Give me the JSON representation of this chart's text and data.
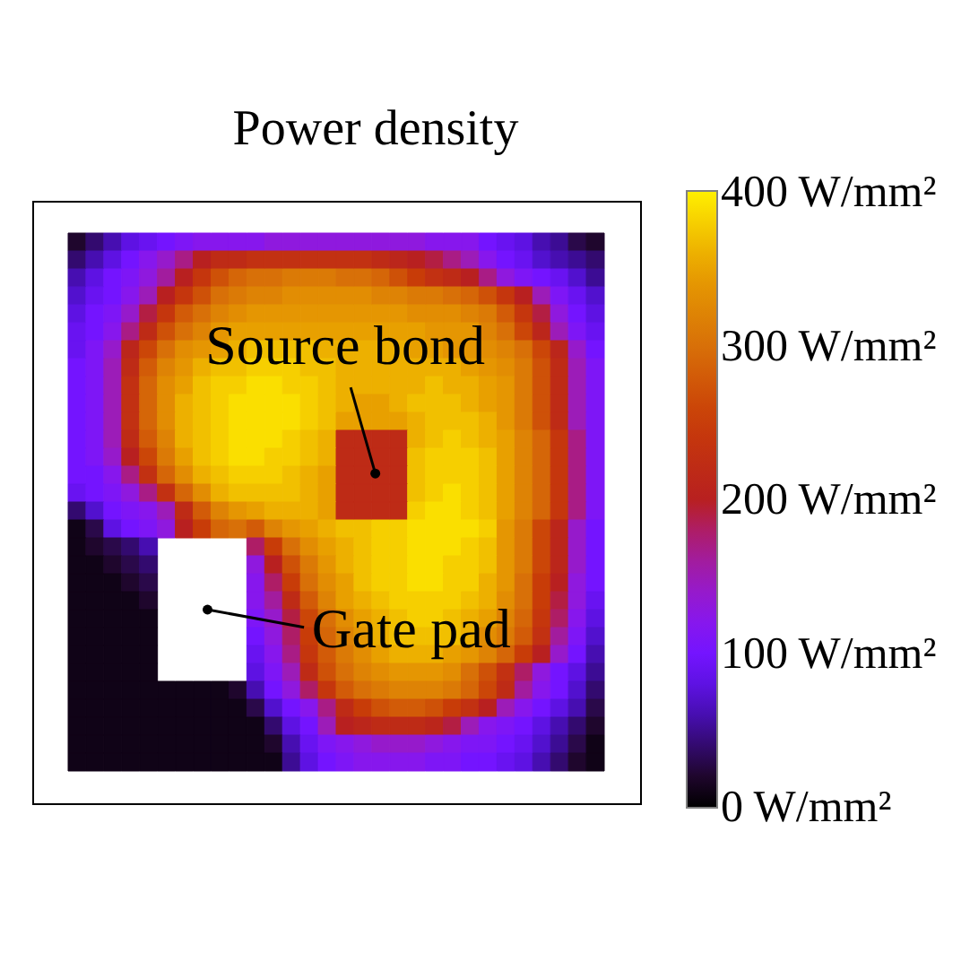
{
  "chart_data": {
    "type": "heatmap",
    "title": "Power density",
    "annotations": [
      "Source bond",
      "Gate pad"
    ],
    "categories": [
      null,
      null,
      null,
      null,
      null,
      null,
      null,
      null,
      null,
      null,
      null,
      null,
      null,
      null,
      null,
      null,
      null,
      null,
      null,
      null,
      null,
      null,
      null,
      null,
      null,
      null,
      null,
      null,
      null,
      null
    ],
    "y_categories": [
      null,
      null,
      null,
      null,
      null,
      null,
      null,
      null,
      null,
      null,
      null,
      null,
      null,
      null,
      null,
      null,
      null,
      null,
      null,
      null,
      null,
      null,
      null,
      null,
      null,
      null,
      null,
      null,
      null,
      null
    ],
    "cells": [
      [
        20,
        40,
        60,
        80,
        90,
        100,
        110,
        120,
        120,
        120,
        120,
        130,
        130,
        130,
        130,
        130,
        130,
        130,
        130,
        130,
        120,
        120,
        120,
        100,
        90,
        80,
        60,
        50,
        30,
        20
      ],
      [
        40,
        60,
        80,
        100,
        120,
        140,
        170,
        200,
        220,
        220,
        230,
        230,
        230,
        230,
        230,
        230,
        230,
        220,
        210,
        200,
        190,
        170,
        150,
        120,
        100,
        90,
        70,
        60,
        50,
        40
      ],
      [
        60,
        80,
        100,
        110,
        130,
        160,
        200,
        240,
        270,
        290,
        300,
        300,
        310,
        310,
        310,
        300,
        300,
        290,
        270,
        250,
        230,
        220,
        200,
        170,
        130,
        110,
        100,
        90,
        70,
        50
      ],
      [
        70,
        90,
        100,
        120,
        150,
        200,
        240,
        270,
        300,
        310,
        320,
        320,
        330,
        330,
        330,
        330,
        330,
        320,
        320,
        310,
        310,
        300,
        290,
        270,
        240,
        200,
        150,
        110,
        90,
        70
      ],
      [
        80,
        100,
        110,
        140,
        190,
        240,
        280,
        300,
        320,
        330,
        340,
        340,
        340,
        340,
        340,
        340,
        340,
        340,
        340,
        330,
        330,
        330,
        320,
        310,
        280,
        240,
        190,
        130,
        100,
        80
      ],
      [
        90,
        100,
        120,
        170,
        220,
        270,
        300,
        320,
        340,
        350,
        350,
        350,
        350,
        350,
        350,
        350,
        350,
        350,
        350,
        350,
        340,
        340,
        340,
        320,
        300,
        260,
        210,
        150,
        110,
        90
      ],
      [
        90,
        110,
        140,
        210,
        260,
        300,
        330,
        340,
        350,
        360,
        370,
        370,
        370,
        370,
        360,
        360,
        360,
        360,
        360,
        350,
        350,
        340,
        340,
        330,
        320,
        300,
        260,
        210,
        140,
        100
      ],
      [
        100,
        110,
        150,
        220,
        280,
        320,
        340,
        360,
        370,
        370,
        380,
        380,
        380,
        370,
        370,
        360,
        360,
        360,
        360,
        360,
        360,
        360,
        350,
        340,
        330,
        310,
        270,
        220,
        150,
        110
      ],
      [
        100,
        110,
        150,
        230,
        290,
        330,
        350,
        370,
        380,
        380,
        390,
        390,
        380,
        380,
        370,
        360,
        360,
        360,
        360,
        360,
        370,
        360,
        360,
        350,
        340,
        310,
        270,
        220,
        150,
        110
      ],
      [
        100,
        110,
        150,
        230,
        290,
        330,
        360,
        370,
        380,
        390,
        390,
        390,
        390,
        380,
        370,
        360,
        350,
        350,
        360,
        370,
        370,
        370,
        360,
        350,
        340,
        310,
        270,
        220,
        150,
        110
      ],
      [
        100,
        110,
        150,
        230,
        290,
        330,
        360,
        370,
        380,
        390,
        390,
        390,
        390,
        380,
        370,
        350,
        350,
        350,
        350,
        360,
        370,
        370,
        370,
        360,
        340,
        310,
        270,
        220,
        150,
        110
      ],
      [
        100,
        110,
        150,
        220,
        280,
        320,
        360,
        370,
        380,
        390,
        390,
        390,
        380,
        370,
        360,
        220,
        220,
        220,
        220,
        360,
        370,
        380,
        370,
        360,
        350,
        320,
        290,
        240,
        170,
        110
      ],
      [
        100,
        110,
        140,
        200,
        260,
        310,
        350,
        370,
        380,
        390,
        390,
        380,
        380,
        370,
        360,
        220,
        220,
        220,
        220,
        370,
        380,
        380,
        380,
        370,
        350,
        320,
        290,
        240,
        170,
        110
      ],
      [
        100,
        100,
        120,
        170,
        230,
        290,
        330,
        360,
        370,
        380,
        380,
        380,
        370,
        360,
        350,
        220,
        220,
        220,
        220,
        370,
        380,
        380,
        380,
        370,
        350,
        320,
        290,
        240,
        170,
        110
      ],
      [
        90,
        100,
        110,
        130,
        170,
        230,
        290,
        330,
        360,
        370,
        370,
        370,
        370,
        360,
        350,
        220,
        220,
        220,
        220,
        370,
        380,
        390,
        380,
        370,
        350,
        320,
        290,
        240,
        170,
        110
      ],
      [
        40,
        70,
        100,
        110,
        120,
        150,
        220,
        280,
        320,
        340,
        350,
        360,
        360,
        360,
        350,
        220,
        220,
        220,
        220,
        380,
        390,
        390,
        380,
        370,
        350,
        320,
        290,
        240,
        170,
        110
      ],
      [
        10,
        30,
        80,
        100,
        110,
        130,
        200,
        250,
        290,
        300,
        280,
        320,
        340,
        350,
        360,
        370,
        370,
        380,
        380,
        390,
        390,
        390,
        390,
        380,
        340,
        310,
        260,
        210,
        140,
        100
      ],
      [
        10,
        20,
        30,
        40,
        60,
        null,
        null,
        null,
        null,
        null,
        180,
        250,
        300,
        330,
        350,
        360,
        370,
        380,
        380,
        390,
        390,
        390,
        380,
        370,
        340,
        310,
        260,
        210,
        140,
        100
      ],
      [
        10,
        10,
        20,
        30,
        40,
        null,
        null,
        null,
        null,
        null,
        130,
        200,
        270,
        310,
        340,
        360,
        370,
        380,
        380,
        390,
        390,
        380,
        380,
        370,
        340,
        310,
        260,
        210,
        140,
        100
      ],
      [
        10,
        10,
        10,
        20,
        30,
        null,
        null,
        null,
        null,
        null,
        120,
        180,
        250,
        300,
        330,
        350,
        370,
        380,
        380,
        390,
        390,
        380,
        380,
        360,
        340,
        300,
        250,
        200,
        130,
        100
      ],
      [
        10,
        10,
        10,
        10,
        20,
        null,
        null,
        null,
        null,
        null,
        120,
        160,
        220,
        280,
        320,
        350,
        360,
        370,
        380,
        380,
        380,
        380,
        370,
        360,
        330,
        300,
        250,
        190,
        130,
        90
      ],
      [
        10,
        10,
        10,
        10,
        10,
        null,
        null,
        null,
        null,
        null,
        110,
        140,
        190,
        260,
        300,
        330,
        350,
        360,
        370,
        380,
        380,
        370,
        360,
        350,
        320,
        290,
        240,
        180,
        120,
        80
      ],
      [
        10,
        10,
        10,
        10,
        10,
        null,
        null,
        null,
        null,
        null,
        100,
        130,
        180,
        250,
        290,
        320,
        340,
        360,
        370,
        370,
        370,
        370,
        360,
        330,
        310,
        280,
        230,
        160,
        110,
        70
      ],
      [
        10,
        10,
        10,
        10,
        10,
        null,
        null,
        null,
        null,
        null,
        90,
        120,
        170,
        240,
        280,
        310,
        330,
        350,
        360,
        360,
        360,
        350,
        340,
        320,
        290,
        250,
        200,
        140,
        100,
        60
      ],
      [
        10,
        10,
        10,
        10,
        10,
        null,
        null,
        null,
        null,
        null,
        80,
        110,
        150,
        220,
        270,
        300,
        320,
        330,
        340,
        340,
        340,
        330,
        300,
        270,
        230,
        180,
        130,
        100,
        80,
        50
      ],
      [
        10,
        10,
        10,
        10,
        10,
        10,
        10,
        10,
        10,
        20,
        60,
        100,
        130,
        180,
        240,
        280,
        300,
        310,
        320,
        320,
        320,
        310,
        290,
        260,
        220,
        160,
        120,
        100,
        70,
        40
      ],
      [
        10,
        10,
        10,
        10,
        10,
        10,
        10,
        10,
        10,
        10,
        30,
        70,
        100,
        120,
        170,
        220,
        250,
        270,
        280,
        280,
        270,
        250,
        230,
        200,
        150,
        120,
        100,
        80,
        60,
        30
      ],
      [
        10,
        10,
        10,
        10,
        10,
        10,
        10,
        10,
        10,
        10,
        10,
        40,
        80,
        100,
        150,
        200,
        210,
        220,
        220,
        220,
        210,
        190,
        150,
        120,
        110,
        100,
        80,
        60,
        40,
        20
      ],
      [
        10,
        10,
        10,
        10,
        10,
        10,
        10,
        10,
        10,
        10,
        10,
        20,
        60,
        90,
        110,
        120,
        130,
        140,
        140,
        140,
        130,
        120,
        110,
        110,
        100,
        90,
        70,
        50,
        30,
        10
      ],
      [
        10,
        10,
        10,
        10,
        10,
        10,
        10,
        10,
        10,
        10,
        10,
        10,
        50,
        80,
        100,
        110,
        120,
        120,
        120,
        120,
        110,
        110,
        100,
        100,
        90,
        80,
        60,
        40,
        20,
        10
      ]
    ],
    "clim": [
      0,
      400
    ],
    "cticks": [
      {
        "value": 0,
        "label": "0 W/mm²"
      },
      {
        "value": 100,
        "label": "100 W/mm²"
      },
      {
        "value": 200,
        "label": "200 W/mm²"
      },
      {
        "value": 300,
        "label": "300 W/mm²"
      },
      {
        "value": 400,
        "label": "400 W/mm²"
      }
    ]
  }
}
